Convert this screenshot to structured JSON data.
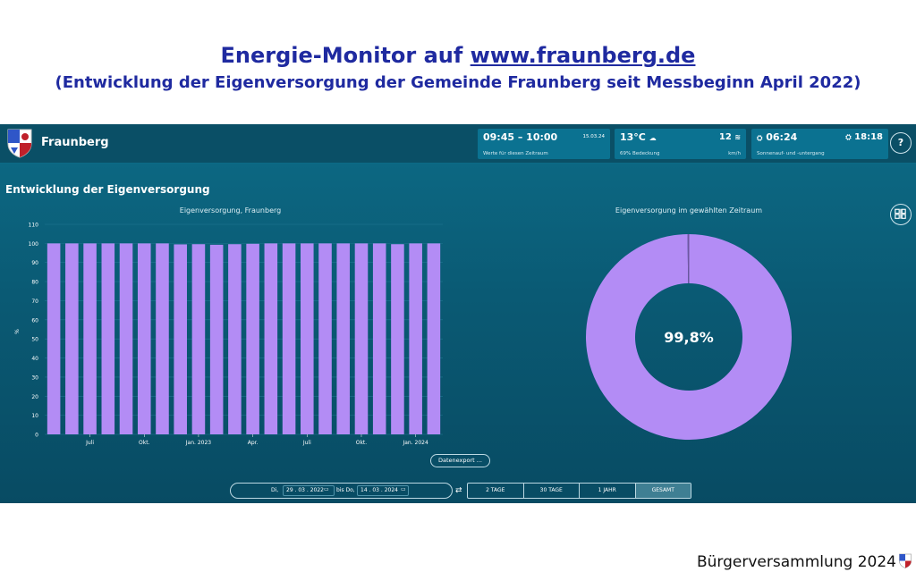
{
  "slide": {
    "title_prefix": "Energie-Monitor auf ",
    "title_link": "www.fraunberg.de",
    "subtitle": "(Entwicklung der Eigenversorgung der Gemeinde Fraunberg seit Messbeginn April 2022)",
    "footer": "Bürgerversammlung 2024"
  },
  "header": {
    "site_name": "Fraunberg",
    "time_card": {
      "time": "09:45 – 10:00",
      "date": "15.03.24",
      "caption": "Werte für diesen Zeitraum"
    },
    "weather_card": {
      "temp": "13°C",
      "cloud": "69% Bedeckung",
      "wind": "12",
      "wind_unit": "km/h"
    },
    "sun_card": {
      "sunrise": "06:24",
      "sunset": "18:18",
      "caption": "Sonnenauf- und -untergang"
    },
    "help_label": "?"
  },
  "section_title": "Entwicklung der Eigenversorgung",
  "bar_chart_title": "Eigenversorgung, Fraunberg",
  "donut_chart_title": "Eigenversorgung im gewählten Zeitraum",
  "controls": {
    "export_label": "Datenexport ...",
    "from_prefix": "Di,",
    "from_date": "29 . 03 . 2022",
    "to_prefix": "bis Do,",
    "to_date": "14 . 03 . 2024",
    "ranges": [
      "2 TAGE",
      "30 TAGE",
      "1 JAHR",
      "GESAMT"
    ],
    "active_range": "GESAMT"
  },
  "colors": {
    "bar": "#b38cf5",
    "accent_bg": "#0a5a74"
  },
  "chart_data": [
    {
      "type": "bar",
      "title": "Eigenversorgung, Fraunberg",
      "ylabel": "%",
      "ylim": [
        0,
        110
      ],
      "yticks": [
        0,
        10,
        20,
        30,
        40,
        50,
        60,
        70,
        80,
        90,
        100,
        110
      ],
      "xtick_labels": [
        "Juli",
        "Okt.",
        "Jan. 2023",
        "Apr.",
        "Juli",
        "Okt.",
        "Jan. 2024"
      ],
      "values": [
        100,
        100,
        100,
        100,
        100,
        100,
        100,
        99.5,
        99.6,
        99.3,
        99.6,
        99.8,
        100,
        100,
        100,
        100,
        100,
        100,
        100,
        99.6,
        100,
        100
      ],
      "grid": true
    },
    {
      "type": "pie",
      "title": "Eigenversorgung im gewählten Zeitraum",
      "values": [
        99.8,
        0.2
      ],
      "center_label": "99,8%"
    }
  ]
}
